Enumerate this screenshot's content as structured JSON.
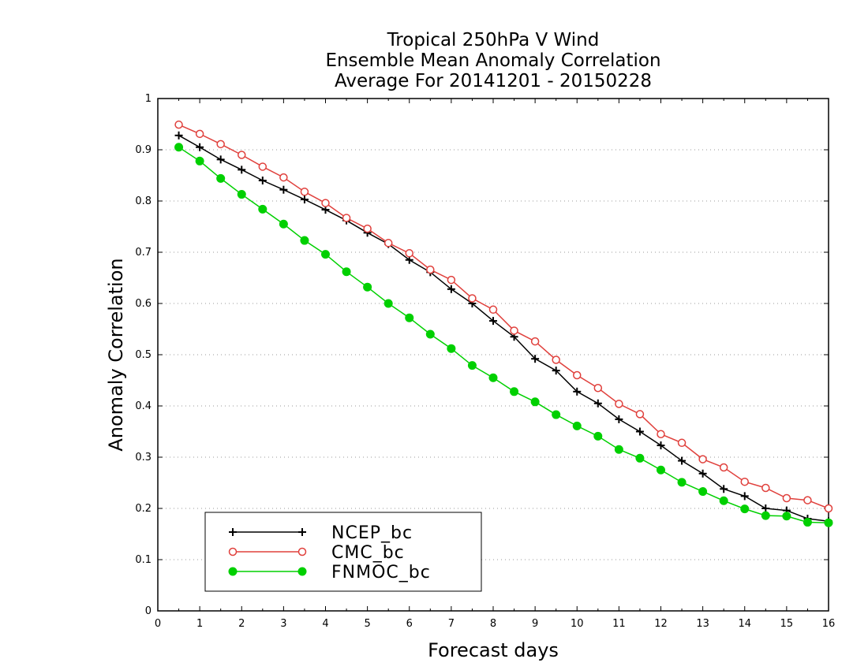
{
  "chart_data": {
    "type": "line",
    "title": [
      "Tropical 250hPa V Wind",
      "Ensemble Mean Anomaly Correlation",
      "Average For 20141201 - 20150228"
    ],
    "xlabel": "Forecast days",
    "ylabel": "Anomaly Correlation",
    "xlim": [
      0,
      16
    ],
    "ylim": [
      0,
      1
    ],
    "xticks": [
      "0",
      "1",
      "2",
      "3",
      "4",
      "5",
      "6",
      "7",
      "8",
      "9",
      "10",
      "11",
      "12",
      "13",
      "14",
      "15",
      "16"
    ],
    "yticks": [
      "0",
      "0.1",
      "0.2",
      "0.3",
      "0.4",
      "0.5",
      "0.6",
      "0.7",
      "0.8",
      "0.9",
      "1"
    ],
    "grid": "horizontal dotted",
    "legend_position": "bottom-left",
    "x": [
      0.5,
      1,
      1.5,
      2,
      2.5,
      3,
      3.5,
      4,
      4.5,
      5,
      5.5,
      6,
      6.5,
      7,
      7.5,
      8,
      8.5,
      9,
      9.5,
      10,
      10.5,
      11,
      11.5,
      12,
      12.5,
      13,
      13.5,
      14,
      14.5,
      15,
      15.5,
      16
    ],
    "series": [
      {
        "name": "NCEP_bc",
        "color": "#000000",
        "marker": "plus",
        "values": [
          0.928,
          0.905,
          0.881,
          0.861,
          0.84,
          0.822,
          0.803,
          0.783,
          0.762,
          0.738,
          0.716,
          0.685,
          0.661,
          0.628,
          0.6,
          0.566,
          0.535,
          0.492,
          0.469,
          0.428,
          0.405,
          0.374,
          0.35,
          0.323,
          0.293,
          0.268,
          0.238,
          0.224,
          0.2,
          0.196,
          0.18,
          0.175
        ]
      },
      {
        "name": "CMC_bc",
        "color": "#e0403c",
        "marker": "open-circle",
        "values": [
          0.949,
          0.931,
          0.911,
          0.89,
          0.867,
          0.846,
          0.818,
          0.796,
          0.767,
          0.746,
          0.718,
          0.698,
          0.666,
          0.646,
          0.61,
          0.588,
          0.547,
          0.526,
          0.49,
          0.46,
          0.435,
          0.404,
          0.384,
          0.345,
          0.328,
          0.296,
          0.28,
          0.252,
          0.24,
          0.22,
          0.216,
          0.2
        ]
      },
      {
        "name": "FNMOC_bc",
        "color": "#00d000",
        "marker": "filled-circle",
        "values": [
          0.905,
          0.878,
          0.844,
          0.813,
          0.784,
          0.755,
          0.723,
          0.696,
          0.662,
          0.632,
          0.6,
          0.572,
          0.54,
          0.512,
          0.479,
          0.455,
          0.428,
          0.408,
          0.383,
          0.361,
          0.341,
          0.315,
          0.298,
          0.275,
          0.251,
          0.233,
          0.215,
          0.199,
          0.186,
          0.185,
          0.173,
          0.172
        ]
      }
    ]
  }
}
